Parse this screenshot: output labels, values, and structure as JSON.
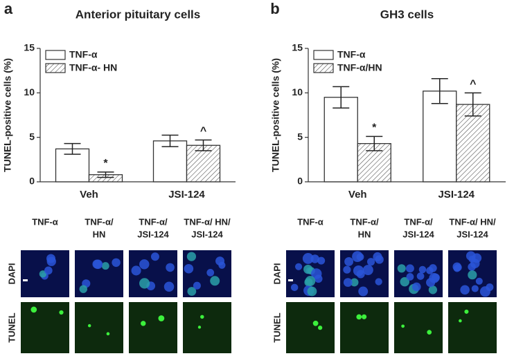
{
  "chart_data": [
    {
      "type": "bar",
      "title": "Anterior pituitary cells",
      "y_label": "TUNEL-positive cells (%)",
      "categories": [
        "Veh",
        "JSI-124"
      ],
      "series": [
        {
          "name": "TNF-α",
          "color": "#ffffff",
          "hatch": false,
          "values": [
            3.7,
            4.6
          ],
          "errors": [
            0.6,
            0.65
          ]
        },
        {
          "name": "TNF-α- HN",
          "color": "#ffffff",
          "hatch": true,
          "values": [
            0.8,
            4.1
          ],
          "errors": [
            0.3,
            0.6
          ],
          "markers": [
            "*",
            "^"
          ]
        }
      ],
      "ylim": [
        0,
        15
      ],
      "yticks": [
        0,
        5,
        10,
        15
      ],
      "legend": "upper left"
    },
    {
      "type": "bar",
      "title": "GH3 cells",
      "y_label": "TUNEL-positive cells (%)",
      "categories": [
        "Veh",
        "JSI-124"
      ],
      "series": [
        {
          "name": "TNF-α",
          "color": "#ffffff",
          "hatch": false,
          "values": [
            9.5,
            10.2
          ],
          "errors": [
            1.2,
            1.4
          ]
        },
        {
          "name": "TNF-α/HN",
          "color": "#ffffff",
          "hatch": true,
          "values": [
            4.3,
            8.7
          ],
          "errors": [
            0.8,
            1.3
          ],
          "markers": [
            "*",
            "^"
          ]
        }
      ],
      "ylim": [
        0,
        15
      ],
      "yticks": [
        0,
        5,
        10,
        15
      ],
      "legend": "upper left"
    }
  ],
  "panels": [
    {
      "letter": "a",
      "columns": [
        [
          "TNF-α"
        ],
        [
          "TNF-α/",
          "HN"
        ],
        [
          "TNF-α/",
          "JSI-124"
        ],
        [
          "TNF-α/ HN/",
          "JSI-124"
        ]
      ],
      "rows": [
        "DAPI",
        "TUNEL"
      ]
    },
    {
      "letter": "b",
      "columns": [
        [
          "TNF-α"
        ],
        [
          "TNF-α/",
          "HN"
        ],
        [
          "TNF-α/",
          "JSI-124"
        ],
        [
          "TNF-α/ HN/",
          "JSI-124"
        ]
      ],
      "rows": [
        "DAPI",
        "TUNEL"
      ]
    }
  ]
}
